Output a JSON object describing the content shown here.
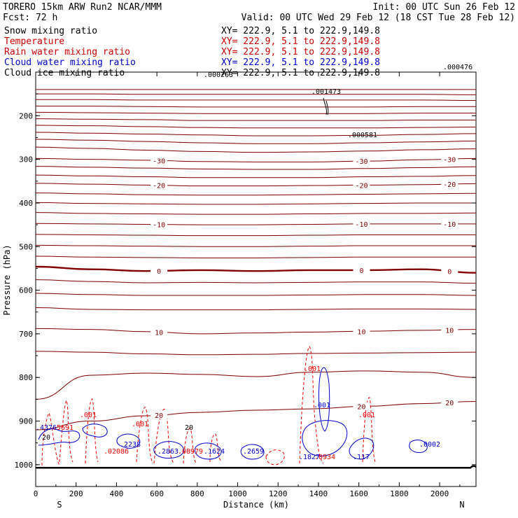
{
  "header": {
    "model": "TORERO  15km ARW   Run2    NCAR/MMM",
    "init": "Init: 00 UTC Sun 26 Feb 12",
    "fcst": "Fcst:   72 h",
    "valid": "Valid: 00 UTC Wed 29 Feb 12 (18 CST Tue 28 Feb 12)"
  },
  "legend": [
    {
      "label": "Snow mixing ratio",
      "xy": "XY= 222.9,  5.1 to 222.9,149.8",
      "color": "#000000"
    },
    {
      "label": "Temperature",
      "xy": "XY= 222.9,  5.1 to 222.9,149.8",
      "color": "#cc0000"
    },
    {
      "label": "Rain water mixing ratio",
      "xy": "XY= 222.9,  5.1 to 222.9,149.8",
      "color": "#cc0000"
    },
    {
      "label": "Cloud water mixing ratio",
      "xy": "XY= 222.9,  5.1 to 222.9,149.8",
      "color": "#0000cc"
    },
    {
      "label": "Cloud ice mixing ratio",
      "xy": "XY= 222.9,  5.1 to 222.9,149.8",
      "color": "#000000"
    }
  ],
  "colors": {
    "temperature": "#800000",
    "rain": "#ee0000",
    "cloud_water": "#0000cc",
    "ground": "#000000"
  },
  "chart_data": {
    "type": "contour cross-section",
    "xlabel": "Distance (km)",
    "ylabel": "Pressure (hPa)",
    "xlim": [
      0,
      2180
    ],
    "ylim": [
      1050,
      100
    ],
    "x_ticks": [
      0,
      200,
      400,
      600,
      800,
      1000,
      1200,
      1400,
      1600,
      1800,
      2000
    ],
    "y_ticks": [
      200,
      300,
      400,
      500,
      600,
      700,
      800,
      900,
      1000
    ],
    "endpoints": {
      "left": "S",
      "right": "N"
    },
    "ground_pressure": 1007,
    "temperature_contours": [
      {
        "p": [
          140,
          140,
          140,
          140,
          140,
          140,
          140,
          140,
          140
        ],
        "label": ""
      },
      {
        "p": [
          150,
          150,
          151,
          151,
          151,
          151,
          151,
          151,
          152
        ],
        "label": ""
      },
      {
        "p": [
          163,
          163,
          164,
          164,
          164,
          164,
          164,
          164,
          165
        ],
        "label": ""
      },
      {
        "p": [
          178,
          178,
          179,
          180,
          180,
          180,
          180,
          179,
          179
        ],
        "label": ""
      },
      {
        "p": [
          192,
          193,
          194,
          195,
          195,
          195,
          195,
          194,
          194
        ],
        "label": ""
      },
      {
        "p": [
          207,
          208,
          209,
          211,
          211,
          211,
          211,
          210,
          210
        ],
        "label": ""
      },
      {
        "p": [
          222,
          223,
          225,
          227,
          228,
          228,
          228,
          227,
          226
        ],
        "label": ""
      },
      {
        "p": [
          238,
          240,
          242,
          244,
          246,
          246,
          245,
          243,
          241
        ],
        "label": ""
      },
      {
        "p": [
          254,
          256,
          259,
          262,
          264,
          264,
          262,
          260,
          258
        ],
        "label": ""
      },
      {
        "p": [
          272,
          275,
          279,
          282,
          284,
          283,
          281,
          278,
          276
        ],
        "label": ""
      },
      {
        "p": [
          298,
          300,
          302,
          305,
          306,
          306,
          304,
          301,
          298
        ],
        "label": "-30"
      },
      {
        "p": [
          316,
          318,
          320,
          322,
          323,
          323,
          321,
          319,
          317
        ],
        "label": ""
      },
      {
        "p": [
          336,
          338,
          340,
          342,
          342,
          342,
          340,
          339,
          337
        ],
        "label": ""
      },
      {
        "p": [
          355,
          357,
          359,
          361,
          361,
          360,
          359,
          358,
          356
        ],
        "label": "-20"
      },
      {
        "p": [
          377,
          379,
          381,
          382,
          382,
          381,
          380,
          379,
          378
        ],
        "label": ""
      },
      {
        "p": [
          399,
          401,
          402,
          403,
          403,
          402,
          401,
          400,
          400
        ],
        "label": ""
      },
      {
        "p": [
          422,
          424,
          425,
          426,
          426,
          425,
          424,
          424,
          423
        ],
        "label": ""
      },
      {
        "p": [
          447,
          448,
          449,
          450,
          450,
          449,
          448,
          448,
          448
        ],
        "label": "-10"
      },
      {
        "p": [
          472,
          473,
          474,
          475,
          475,
          474,
          473,
          473,
          473
        ],
        "label": ""
      },
      {
        "p": [
          497,
          498,
          499,
          500,
          500,
          499,
          498,
          498,
          498
        ],
        "label": ""
      },
      {
        "p": [
          522,
          524,
          525,
          526,
          526,
          525,
          524,
          524,
          524
        ],
        "label": ""
      },
      {
        "p": [
          546,
          552,
          556,
          554,
          556,
          554,
          554,
          552,
          560
        ],
        "label": "0",
        "freezing": true
      },
      {
        "p": [
          576,
          580,
          583,
          582,
          583,
          582,
          581,
          581,
          584
        ],
        "label": ""
      },
      {
        "p": [
          607,
          610,
          612,
          612,
          612,
          611,
          610,
          610,
          612
        ],
        "label": ""
      },
      {
        "p": [
          640,
          644,
          645,
          645,
          645,
          644,
          643,
          643,
          644
        ],
        "label": ""
      },
      {
        "p": [
          688,
          690,
          695,
          700,
          698,
          696,
          694,
          692,
          690
        ],
        "label": "10"
      },
      {
        "p": [
          740,
          742,
          746,
          748,
          747,
          745,
          744,
          743,
          742
        ],
        "label": ""
      },
      {
        "p": [
          850,
          795,
          790,
          793,
          798,
          788,
          785,
          788,
          800
        ],
        "label": ""
      },
      {
        "p": [
          920,
          900,
          888,
          880,
          875,
          872,
          866,
          860,
          855
        ],
        "label": "20"
      }
    ],
    "rain_labels": [
      ".001",
      ".001",
      ".001",
      ".001",
      ".02086",
      ".08979",
      ".0934"
    ],
    "cloud_water_labels": [
      ".4376",
      ".001",
      ".2238",
      ".2863",
      ".1624",
      ".2659",
      ".1827",
      ".117",
      ".0002"
    ],
    "snow_labels": [
      ".000476",
      ".000263",
      ".001473",
      ".000581"
    ],
    "other_labels": {
      "rain_mid": ".5691",
      "cloud_left_20": "20",
      "cloud_top_20": "20"
    }
  }
}
